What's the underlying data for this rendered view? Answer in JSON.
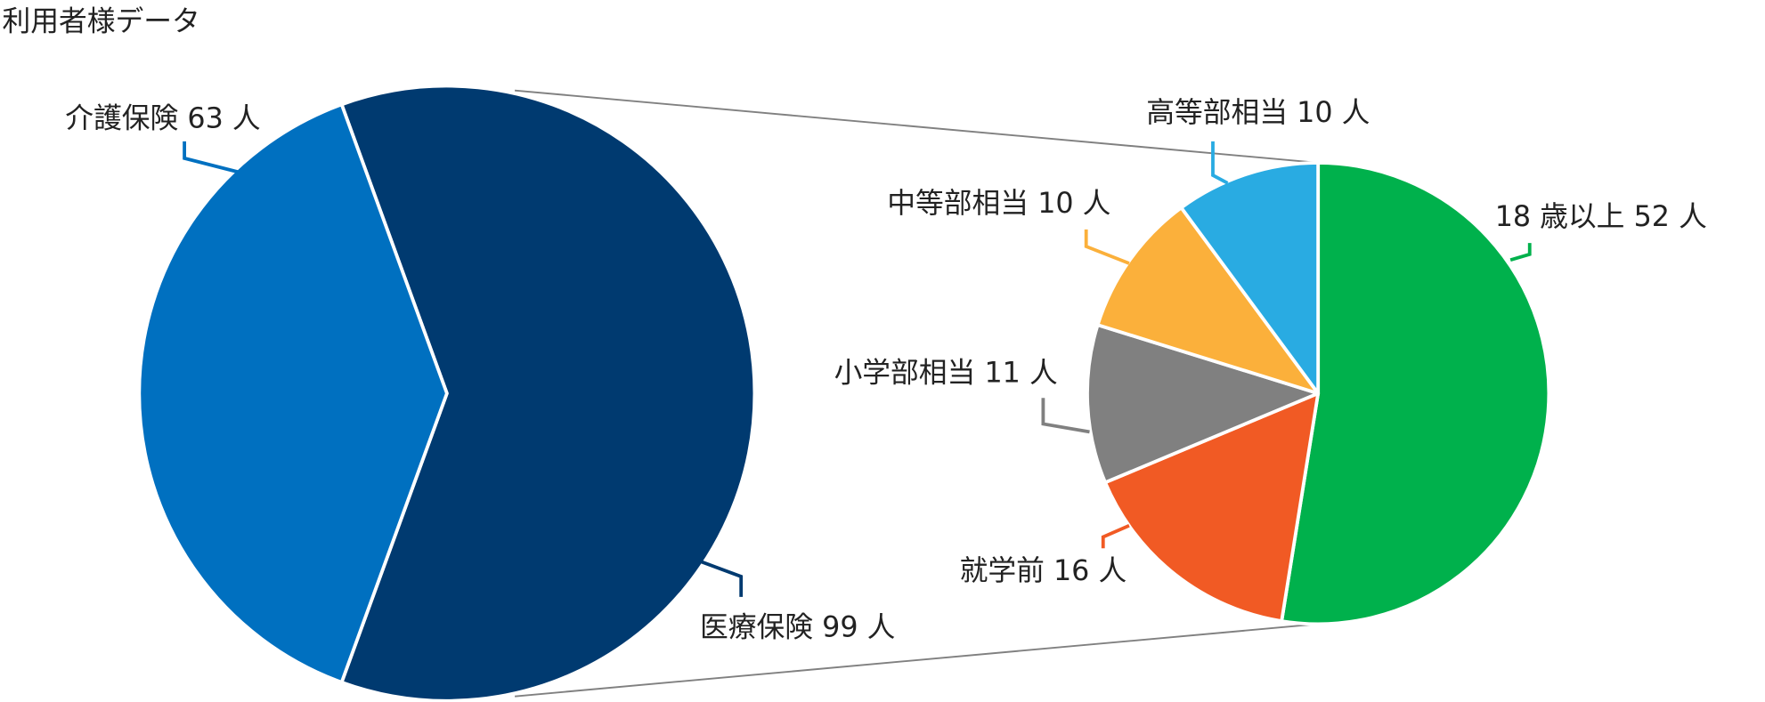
{
  "chart_data": [
    {
      "type": "pie",
      "title": "利用者様データ",
      "categories": [
        "医療保険",
        "介護保険"
      ],
      "values": [
        99,
        63
      ],
      "value_labels": [
        "99 人",
        "63 人"
      ],
      "colors": [
        "#003a70",
        "#0070c0"
      ]
    },
    {
      "type": "pie",
      "categories": [
        "18 歳以上",
        "就学前",
        "小学部相当",
        "中等部相当",
        "高等部相当"
      ],
      "values": [
        52,
        16,
        11,
        10,
        10
      ],
      "value_labels": [
        "52 人",
        "16 人",
        "11 人",
        "10 人",
        "10 人"
      ],
      "colors": [
        "#00b14c",
        "#f15a24",
        "#808080",
        "#fbb03b",
        "#29abe2"
      ]
    }
  ]
}
